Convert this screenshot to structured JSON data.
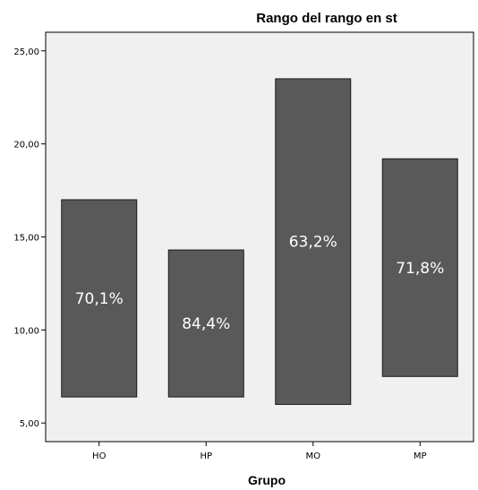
{
  "chart_data": {
    "type": "bar",
    "subtype": "floating-range",
    "title": "Rango del rango en st",
    "xlabel": "Grupo",
    "ylabel": "",
    "categories": [
      "HO",
      "HP",
      "MO",
      "MP"
    ],
    "ranges": [
      {
        "category": "HO",
        "low": 6.4,
        "high": 17.0,
        "label": "70,1%"
      },
      {
        "category": "HP",
        "low": 6.4,
        "high": 14.3,
        "label": "84,4%"
      },
      {
        "category": "MO",
        "low": 6.0,
        "high": 23.5,
        "label": "63,2%"
      },
      {
        "category": "MP",
        "low": 7.5,
        "high": 19.2,
        "label": "71,8%"
      }
    ],
    "ylim": [
      4.0,
      26.0
    ],
    "yticks": [
      5,
      10,
      15,
      20,
      25
    ],
    "ytick_labels": [
      "5,00",
      "10,00",
      "15,00",
      "20,00",
      "25,00"
    ],
    "grid": false,
    "colors": {
      "plot_background": "#f0f0f0",
      "bar_fill": "#595959",
      "bar_stroke": "#1a1a1a",
      "label_color": "#ffffff"
    }
  }
}
